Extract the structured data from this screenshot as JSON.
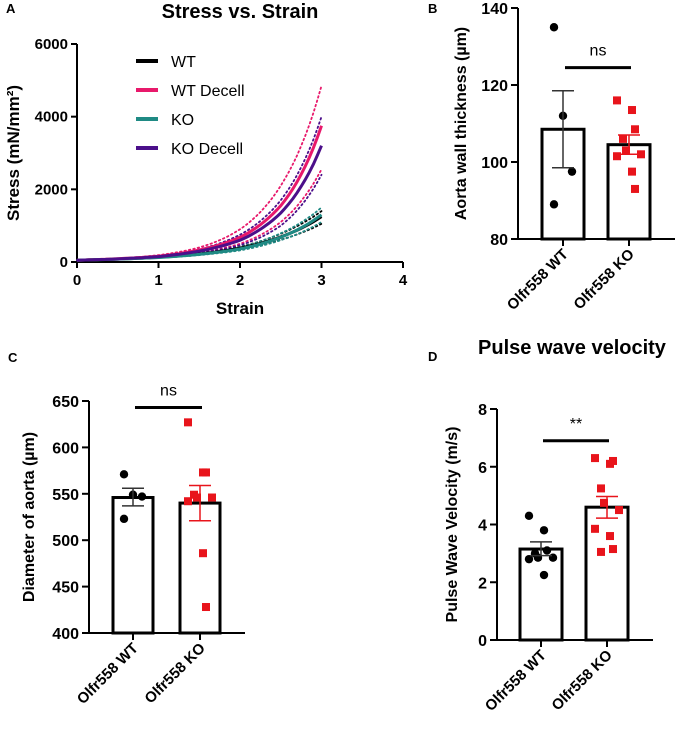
{
  "chart_data": [
    {
      "panel": "A",
      "type": "line",
      "title": "Stress vs. Strain",
      "xlabel": "Strain",
      "ylabel": "Stress (mN/mm²)",
      "xlim": [
        0,
        4
      ],
      "ylim": [
        0,
        6000
      ],
      "xticks": [
        0,
        1,
        2,
        3,
        4
      ],
      "yticks": [
        0,
        2000,
        4000,
        6000
      ],
      "legend_position": "top-left",
      "x": [
        0,
        0.5,
        1,
        1.5,
        2,
        2.5,
        3
      ],
      "series": [
        {
          "name": "WT",
          "color": "#000000",
          "values": [
            50,
            80,
            130,
            220,
            380,
            690,
            1250
          ],
          "band_upper": [
            50,
            85,
            140,
            240,
            420,
            780,
            1400
          ],
          "band_lower": [
            50,
            75,
            120,
            200,
            340,
            610,
            1050
          ]
        },
        {
          "name": "WT Decell",
          "color": "#e8196b",
          "values": [
            50,
            90,
            160,
            330,
            680,
            1550,
            3750
          ],
          "band_upper": [
            50,
            95,
            190,
            400,
            900,
            2100,
            4850
          ],
          "band_lower": [
            50,
            85,
            140,
            260,
            500,
            1100,
            2550
          ]
        },
        {
          "name": "KO",
          "color": "#1f8a84",
          "values": [
            50,
            80,
            125,
            210,
            360,
            680,
            1300
          ],
          "band_upper": [
            50,
            85,
            135,
            235,
            410,
            790,
            1500
          ],
          "band_lower": [
            50,
            75,
            115,
            190,
            320,
            600,
            1100
          ]
        },
        {
          "name": "KO Decell",
          "color": "#4b0f8a",
          "values": [
            50,
            85,
            150,
            300,
            600,
            1350,
            3200
          ],
          "band_upper": [
            50,
            90,
            170,
            350,
            750,
            1700,
            4000
          ],
          "band_lower": [
            50,
            80,
            135,
            250,
            460,
            1000,
            2400
          ]
        }
      ]
    },
    {
      "panel": "B",
      "type": "bar",
      "title": "",
      "ylabel": "Aorta wall thickness (µm)",
      "ylim": [
        80,
        140
      ],
      "yticks": [
        80,
        100,
        120,
        140
      ],
      "categories": [
        "Olfr558 WT",
        "Olfr558 KO"
      ],
      "values": [
        108.5,
        104.5
      ],
      "sem": [
        [
          98.5,
          118.5
        ],
        [
          102,
          107
        ]
      ],
      "points": [
        [
          135,
          112,
          97.5,
          89
        ],
        [
          116,
          113.5,
          108.5,
          106,
          103,
          102,
          101.5,
          97.5,
          93
        ]
      ],
      "significance": {
        "label": "ns",
        "y": 124.5
      },
      "colors": [
        "#000000",
        "#e8141b"
      ]
    },
    {
      "panel": "C",
      "type": "bar",
      "title": "",
      "ylabel": "Diameter of aorta (µm)",
      "ylim": [
        400,
        650
      ],
      "yticks": [
        400,
        450,
        500,
        550,
        600,
        650
      ],
      "categories": [
        "Olfr558 WT",
        "Olfr558 KO"
      ],
      "values": [
        546,
        540
      ],
      "sem": [
        [
          537,
          556
        ],
        [
          521,
          559
        ]
      ],
      "points": [
        [
          571,
          549,
          547,
          523
        ],
        [
          627,
          573,
          573,
          549,
          546,
          546,
          542,
          486,
          428
        ]
      ],
      "significance": {
        "label": "ns",
        "y": 643
      },
      "colors": [
        "#000000",
        "#e8141b"
      ]
    },
    {
      "panel": "D",
      "type": "bar",
      "title": "Pulse wave velocity",
      "ylabel": "Pulse Wave Velocity (m/s)",
      "ylim": [
        0,
        8
      ],
      "yticks": [
        0,
        2,
        4,
        6,
        8
      ],
      "categories": [
        "Olfr558 WT",
        "Olfr558 KO"
      ],
      "values": [
        3.15,
        4.6
      ],
      "sem": [
        [
          2.92,
          3.4
        ],
        [
          4.22,
          4.97
        ]
      ],
      "points": [
        [
          4.3,
          3.8,
          3.1,
          3.0,
          2.85,
          2.85,
          2.8,
          2.25
        ],
        [
          6.3,
          6.1,
          6.2,
          5.25,
          4.75,
          4.5,
          3.85,
          3.6,
          3.15,
          3.05
        ]
      ],
      "significance": {
        "label": "**",
        "y": 6.9
      },
      "colors": [
        "#000000",
        "#e8141b"
      ]
    }
  ]
}
